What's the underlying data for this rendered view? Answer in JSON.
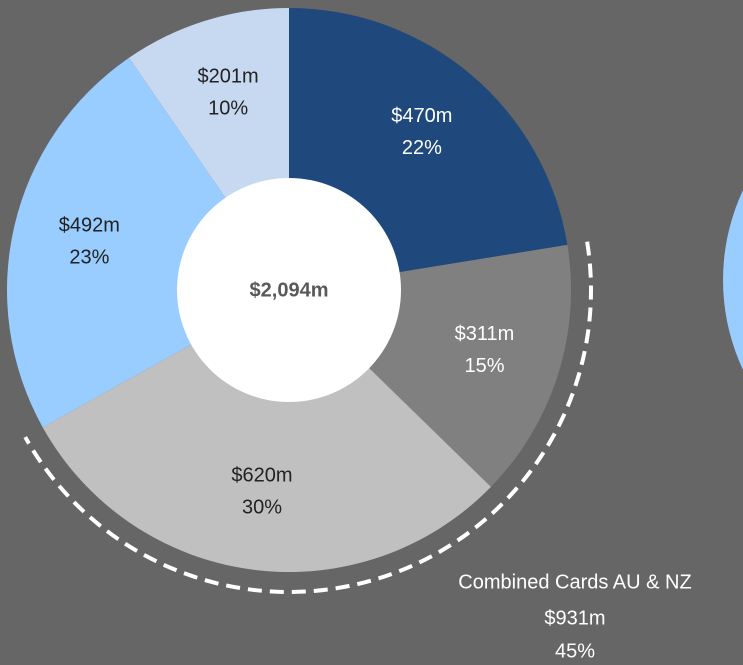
{
  "chart_data": {
    "type": "donut",
    "categories": [
      null,
      null,
      null,
      null,
      null
    ],
    "values": [
      470,
      311,
      620,
      492,
      201
    ],
    "value_labels": [
      "$470m",
      "$311m",
      "$620m",
      "$492m",
      "$201m"
    ],
    "percents": [
      22,
      15,
      30,
      23,
      10
    ],
    "percent_labels": [
      "22%",
      "15%",
      "30%",
      "23%",
      "10%"
    ],
    "colors": [
      "#1f497d",
      "#808080",
      "#c0c0c0",
      "#99ccff",
      "#c6d9f1"
    ],
    "label_colors": [
      "#ffffff",
      "#ffffff",
      "#222222",
      "#222222",
      "#222222"
    ],
    "total": 2094,
    "total_label": "$2,094m",
    "annotation": {
      "text": "Combined Cards AU & NZ",
      "value": 931,
      "value_label": "$931m",
      "percent": 45,
      "percent_label": "45%"
    }
  }
}
